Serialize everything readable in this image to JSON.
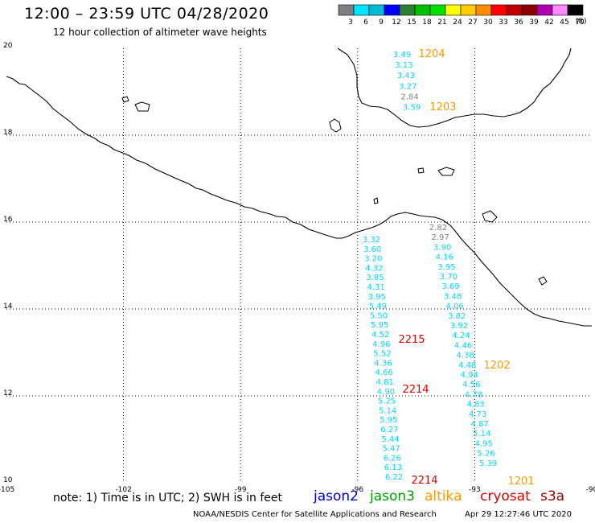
{
  "header": {
    "title": "12:00 – 23:59 UTC 04/28/2020",
    "subtitle": "12 hour collection of altimeter wave heights"
  },
  "colorbar": {
    "labels": [
      "3",
      "6",
      "9",
      "12",
      "15",
      "18",
      "21",
      "24",
      "27",
      "30",
      "33",
      "36",
      "39",
      "42",
      "45",
      "70"
    ],
    "unit": "(ft)",
    "colors": [
      "#7f7f7f",
      "#00e5ff",
      "#00bcd4",
      "#0000ff",
      "#2e7d32",
      "#00c000",
      "#00e000",
      "#ffff00",
      "#ffcc00",
      "#ff8c00",
      "#ff0000",
      "#c00000",
      "#8b0000",
      "#b000b0",
      "#ff88ff",
      "#000000"
    ]
  },
  "map": {
    "lon_ticks": [
      "-105",
      "-102",
      "-99",
      "-96",
      "-93",
      "-90"
    ],
    "lat_ticks": [
      "20",
      "18",
      "16",
      "14",
      "12",
      "10"
    ],
    "colors": {
      "cyan": "#00d8ff",
      "grey": "#7f7f7f",
      "red": "#dd0000",
      "orange": "#ff9900"
    },
    "tracks": [
      {
        "name": "north-track",
        "labels": [
          {
            "t": "3.49",
            "c": "cyan"
          },
          {
            "t": "3.13",
            "c": "cyan"
          },
          {
            "t": "3.43",
            "c": "cyan"
          },
          {
            "t": "3.27",
            "c": "cyan"
          },
          {
            "t": "2.84",
            "c": "grey"
          },
          {
            "t": "3.59",
            "c": "cyan"
          }
        ]
      },
      {
        "name": "west-track",
        "labels": [
          {
            "t": "3.32",
            "c": "cyan"
          },
          {
            "t": "3.60",
            "c": "cyan"
          },
          {
            "t": "3.20",
            "c": "cyan"
          },
          {
            "t": "4.32",
            "c": "cyan"
          },
          {
            "t": "3.85",
            "c": "cyan"
          },
          {
            "t": "4.31",
            "c": "cyan"
          },
          {
            "t": "3.95",
            "c": "cyan"
          },
          {
            "t": "5.49",
            "c": "cyan"
          },
          {
            "t": "5.50",
            "c": "cyan"
          },
          {
            "t": "5.95",
            "c": "cyan"
          },
          {
            "t": "4.52",
            "c": "cyan"
          },
          {
            "t": "4.96",
            "c": "cyan"
          },
          {
            "t": "5.52",
            "c": "cyan"
          },
          {
            "t": "4.36",
            "c": "cyan"
          },
          {
            "t": "4.66",
            "c": "cyan"
          },
          {
            "t": "4.81",
            "c": "cyan"
          },
          {
            "t": "4.90",
            "c": "cyan"
          },
          {
            "t": "5.25",
            "c": "cyan"
          },
          {
            "t": "5.14",
            "c": "cyan"
          },
          {
            "t": "5.95",
            "c": "cyan"
          },
          {
            "t": "6.27",
            "c": "cyan"
          },
          {
            "t": "5.44",
            "c": "cyan"
          },
          {
            "t": "5.47",
            "c": "cyan"
          },
          {
            "t": "6.26",
            "c": "cyan"
          },
          {
            "t": "6.13",
            "c": "cyan"
          },
          {
            "t": "6.22",
            "c": "cyan"
          }
        ]
      },
      {
        "name": "east-track",
        "labels": [
          {
            "t": "2.82",
            "c": "grey"
          },
          {
            "t": "2.97",
            "c": "grey"
          },
          {
            "t": "3.90",
            "c": "cyan"
          },
          {
            "t": "4.16",
            "c": "cyan"
          },
          {
            "t": "3.95",
            "c": "cyan"
          },
          {
            "t": "3.70",
            "c": "cyan"
          },
          {
            "t": "3.69",
            "c": "cyan"
          },
          {
            "t": "3.48",
            "c": "cyan"
          },
          {
            "t": "4.06",
            "c": "cyan"
          },
          {
            "t": "3.82",
            "c": "cyan"
          },
          {
            "t": "3.92",
            "c": "cyan"
          },
          {
            "t": "4.24",
            "c": "cyan"
          },
          {
            "t": "4.46",
            "c": "cyan"
          },
          {
            "t": "4.38",
            "c": "cyan"
          },
          {
            "t": "4.48",
            "c": "cyan"
          },
          {
            "t": "4.94",
            "c": "cyan"
          },
          {
            "t": "4.56",
            "c": "cyan"
          },
          {
            "t": "4.78",
            "c": "cyan"
          },
          {
            "t": "4.83",
            "c": "cyan"
          },
          {
            "t": "4.73",
            "c": "cyan"
          },
          {
            "t": "4.87",
            "c": "cyan"
          },
          {
            "t": "5.14",
            "c": "cyan"
          },
          {
            "t": "4.95",
            "c": "cyan"
          },
          {
            "t": "5.26",
            "c": "cyan"
          },
          {
            "t": "5.39",
            "c": "cyan"
          }
        ]
      }
    ],
    "time_labels": [
      {
        "t": "1204",
        "c": "orange"
      },
      {
        "t": "1203",
        "c": "orange"
      },
      {
        "t": "2215",
        "c": "red"
      },
      {
        "t": "2214",
        "c": "red"
      },
      {
        "t": "2214",
        "c": "red"
      },
      {
        "t": "1202",
        "c": "orange"
      },
      {
        "t": "1201",
        "c": "orange"
      }
    ]
  },
  "footer": {
    "note": "note: 1) Time is in UTC; 2) SWH is in feet",
    "satellites": [
      {
        "name": "jason2",
        "color": "#0000dd"
      },
      {
        "name": "jason3",
        "color": "#00a000"
      },
      {
        "name": "altika",
        "color": "#ff9900"
      },
      {
        "name": "cryosat",
        "color": "#dd0000"
      },
      {
        "name": "s3a",
        "color": "#990000"
      }
    ],
    "credit": "NOAA/NESDIS Center for Satellite Applications and Research",
    "timestamp": "Apr 29 12:27:46 UTC 2020"
  }
}
